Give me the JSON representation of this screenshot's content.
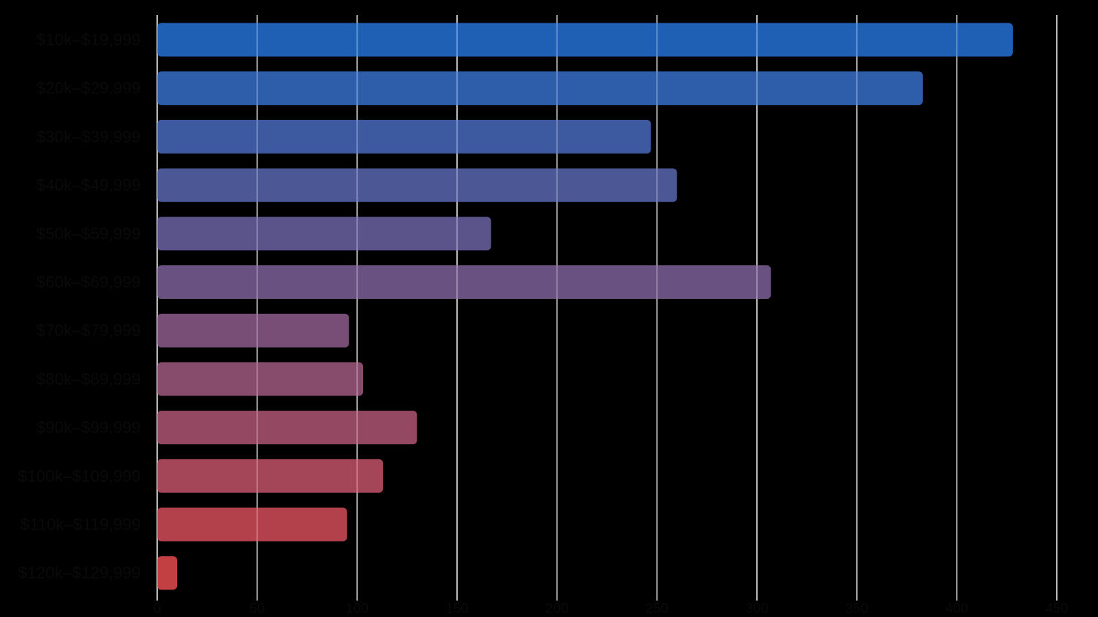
{
  "chart_data": {
    "type": "bar",
    "orientation": "horizontal",
    "title": "",
    "xlabel": "",
    "ylabel": "",
    "categories": [
      "$10k–$19,999",
      "$20k–$29,999",
      "$30k–$39,999",
      "$40k–$49,999",
      "$50k–$59,999",
      "$60k–$69,999",
      "$70k–$79,999",
      "$80k–$89,999",
      "$90k–$99,999",
      "$100k–$109,999",
      "$110k–$119,999",
      "$120k–$129,999"
    ],
    "values": [
      428,
      383,
      247,
      260,
      167,
      307,
      96,
      103,
      130,
      113,
      95,
      10
    ],
    "xlim": [
      0,
      450
    ],
    "xticks": [
      0,
      50,
      100,
      150,
      200,
      250,
      300,
      350,
      400,
      450
    ],
    "grid": true,
    "legend": "none",
    "colors": {
      "background": "#000000",
      "gridline": "#ffffff",
      "bar_start": "#2268c4",
      "bar_end": "#d24448"
    }
  }
}
